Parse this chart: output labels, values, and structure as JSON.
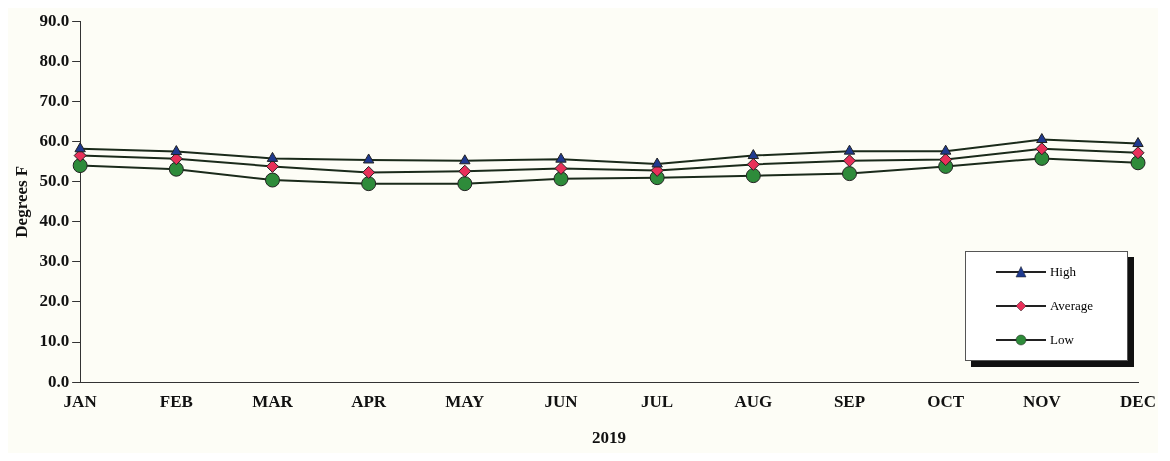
{
  "chart_data": {
    "type": "line",
    "xlabel": "2019",
    "ylabel": "Degrees F",
    "categories": [
      "JAN",
      "FEB",
      "MAR",
      "APR",
      "MAY",
      "JUN",
      "JUL",
      "AUG",
      "SEP",
      "OCT",
      "NOV",
      "DEC"
    ],
    "series": [
      {
        "name": "High",
        "color": "#1f3a8f",
        "marker": "triangle",
        "values": [
          58.2,
          57.5,
          55.8,
          55.4,
          55.2,
          55.6,
          54.4,
          56.5,
          57.6,
          57.6,
          60.5,
          59.5
        ]
      },
      {
        "name": "Average",
        "color": "#e8305a",
        "marker": "diamond",
        "values": [
          56.5,
          55.7,
          53.8,
          52.3,
          52.6,
          53.3,
          52.8,
          54.3,
          55.2,
          55.5,
          58.2,
          57.2
        ]
      },
      {
        "name": "Low",
        "color": "#2e8b3a",
        "marker": "circle",
        "values": [
          54.0,
          53.1,
          50.4,
          49.5,
          49.5,
          50.7,
          51.0,
          51.5,
          52.0,
          53.8,
          55.8,
          54.7
        ]
      }
    ],
    "ylim": [
      0,
      90
    ],
    "yticks": [
      {
        "value": 0,
        "label": "0.0"
      },
      {
        "value": 10,
        "label": "10.0"
      },
      {
        "value": 20,
        "label": "20.0"
      },
      {
        "value": 30,
        "label": "30.0"
      },
      {
        "value": 40,
        "label": "40.0"
      },
      {
        "value": 50,
        "label": "50.0"
      },
      {
        "value": 60,
        "label": "60.0"
      },
      {
        "value": 70,
        "label": "70.0"
      },
      {
        "value": 80,
        "label": "80.0"
      },
      {
        "value": 90,
        "label": "90.0"
      }
    ],
    "grid": false,
    "legend": "bottom right"
  }
}
